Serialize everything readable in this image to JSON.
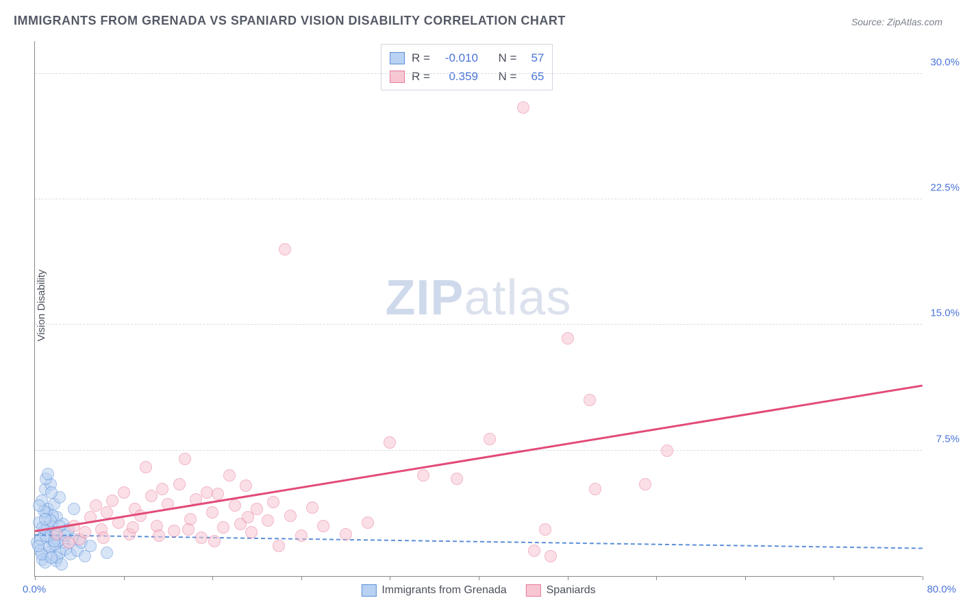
{
  "title": "IMMIGRANTS FROM GRENADA VS SPANIARD VISION DISABILITY CORRELATION CHART",
  "source": "Source: ZipAtlas.com",
  "ylabel": "Vision Disability",
  "watermark_bold": "ZIP",
  "watermark_light": "atlas",
  "chart": {
    "type": "scatter",
    "background_color": "#ffffff",
    "grid_color": "#d8dce4",
    "axis_color": "#888888",
    "text_color": "#4a4f5a",
    "value_color": "#4a74d8",
    "xlim": [
      0,
      80
    ],
    "ylim": [
      0,
      32
    ],
    "y_ticks": [
      7.5,
      15.0,
      22.5,
      30.0
    ],
    "y_tick_labels": [
      "7.5%",
      "15.0%",
      "22.5%",
      "30.0%"
    ],
    "x_ticks": [
      0,
      8,
      16,
      24,
      32,
      40,
      48,
      56,
      64,
      72,
      80
    ],
    "x_origin_label": "0.0%",
    "x_max_label": "80.0%",
    "title_fontsize": 18,
    "label_fontsize": 15,
    "marker_radius": 9,
    "marker_border": 1,
    "marker_opacity": 0.55
  },
  "series": [
    {
      "name": "Immigrants from Grenada",
      "fill": "#b9d1f2",
      "stroke": "#5a8fd8",
      "trend_color": "#5a8fd8",
      "trend_dashed": true,
      "R": "-0.010",
      "N": "57",
      "trend": {
        "x1": 0,
        "y1": 2.4,
        "x2": 80,
        "y2": 1.6
      },
      "points": [
        [
          0.2,
          2.0
        ],
        [
          0.4,
          3.2
        ],
        [
          0.5,
          1.5
        ],
        [
          0.6,
          4.5
        ],
        [
          0.8,
          2.7
        ],
        [
          0.9,
          5.2
        ],
        [
          1.0,
          3.8
        ],
        [
          1.1,
          1.2
        ],
        [
          1.2,
          4.0
        ],
        [
          1.3,
          2.3
        ],
        [
          1.4,
          5.5
        ],
        [
          1.5,
          3.0
        ],
        [
          1.6,
          1.8
        ],
        [
          1.7,
          4.3
        ],
        [
          1.8,
          2.5
        ],
        [
          1.9,
          0.9
        ],
        [
          2.0,
          3.5
        ],
        [
          2.1,
          2.1
        ],
        [
          2.2,
          4.7
        ],
        [
          2.3,
          1.4
        ],
        [
          2.5,
          3.1
        ],
        [
          2.6,
          2.0
        ],
        [
          2.8,
          1.6
        ],
        [
          3.0,
          2.8
        ],
        [
          3.2,
          1.3
        ],
        [
          3.4,
          2.2
        ],
        [
          3.5,
          4.0
        ],
        [
          1.0,
          5.8
        ],
        [
          1.2,
          6.1
        ],
        [
          1.5,
          5.0
        ],
        [
          0.7,
          1.0
        ],
        [
          0.9,
          0.8
        ],
        [
          2.0,
          1.1
        ],
        [
          2.4,
          0.7
        ],
        [
          3.8,
          1.5
        ],
        [
          4.2,
          2.0
        ],
        [
          4.5,
          1.2
        ],
        [
          5.0,
          1.8
        ],
        [
          6.5,
          1.4
        ],
        [
          1.1,
          2.9
        ],
        [
          1.6,
          3.6
        ],
        [
          0.5,
          2.2
        ],
        [
          0.8,
          3.9
        ],
        [
          1.3,
          1.7
        ],
        [
          1.9,
          2.6
        ],
        [
          0.6,
          1.3
        ],
        [
          1.0,
          2.4
        ],
        [
          1.4,
          3.3
        ],
        [
          0.3,
          1.8
        ],
        [
          0.7,
          2.9
        ],
        [
          1.8,
          1.9
        ],
        [
          2.2,
          3.0
        ],
        [
          0.4,
          4.2
        ],
        [
          1.5,
          1.1
        ],
        [
          2.7,
          2.4
        ],
        [
          0.9,
          3.4
        ],
        [
          1.7,
          2.1
        ]
      ]
    },
    {
      "name": "Spaniards",
      "fill": "#f7c6d2",
      "stroke": "#e87a9a",
      "trend_color": "#e24a78",
      "trend_dashed": false,
      "R": "0.359",
      "N": "65",
      "trend": {
        "x1": 0,
        "y1": 2.6,
        "x2": 80,
        "y2": 11.3
      },
      "points": [
        [
          2.0,
          2.5
        ],
        [
          3.5,
          3.0
        ],
        [
          4.0,
          2.2
        ],
        [
          5.0,
          3.5
        ],
        [
          5.5,
          4.2
        ],
        [
          6.0,
          2.8
        ],
        [
          6.5,
          3.8
        ],
        [
          7.0,
          4.5
        ],
        [
          7.5,
          3.2
        ],
        [
          8.0,
          5.0
        ],
        [
          8.5,
          2.5
        ],
        [
          9.0,
          4.0
        ],
        [
          9.5,
          3.6
        ],
        [
          10.0,
          6.5
        ],
        [
          10.5,
          4.8
        ],
        [
          11.0,
          3.0
        ],
        [
          11.5,
          5.2
        ],
        [
          12.0,
          4.3
        ],
        [
          12.5,
          2.7
        ],
        [
          13.0,
          5.5
        ],
        [
          13.5,
          7.0
        ],
        [
          14.0,
          3.4
        ],
        [
          14.5,
          4.6
        ],
        [
          15.0,
          2.3
        ],
        [
          15.5,
          5.0
        ],
        [
          16.0,
          3.8
        ],
        [
          16.5,
          4.9
        ],
        [
          17.0,
          2.9
        ],
        [
          17.5,
          6.0
        ],
        [
          18.0,
          4.2
        ],
        [
          18.5,
          3.1
        ],
        [
          19.0,
          5.4
        ],
        [
          19.5,
          2.6
        ],
        [
          20.0,
          4.0
        ],
        [
          21.0,
          3.3
        ],
        [
          22.0,
          1.8
        ],
        [
          23.0,
          3.6
        ],
        [
          24.0,
          2.4
        ],
        [
          25.0,
          4.1
        ],
        [
          22.5,
          19.5
        ],
        [
          26.0,
          3.0
        ],
        [
          28.0,
          2.5
        ],
        [
          30.0,
          3.2
        ],
        [
          32.0,
          8.0
        ],
        [
          35.0,
          6.0
        ],
        [
          38.0,
          5.8
        ],
        [
          41.0,
          8.2
        ],
        [
          44.0,
          28.0
        ],
        [
          45.0,
          1.5
        ],
        [
          46.0,
          2.8
        ],
        [
          46.5,
          1.2
        ],
        [
          48.0,
          14.2
        ],
        [
          50.0,
          10.5
        ],
        [
          50.5,
          5.2
        ],
        [
          55.0,
          5.5
        ],
        [
          57.0,
          7.5
        ],
        [
          3.0,
          2.0
        ],
        [
          4.5,
          2.6
        ],
        [
          6.2,
          2.3
        ],
        [
          8.8,
          2.9
        ],
        [
          11.2,
          2.4
        ],
        [
          13.8,
          2.8
        ],
        [
          16.2,
          2.1
        ],
        [
          19.2,
          3.5
        ],
        [
          21.5,
          4.4
        ]
      ]
    }
  ],
  "stats_legend_labels": {
    "R": "R =",
    "N": "N ="
  },
  "bottom_legend": {
    "items": [
      "Immigrants from Grenada",
      "Spaniards"
    ]
  }
}
